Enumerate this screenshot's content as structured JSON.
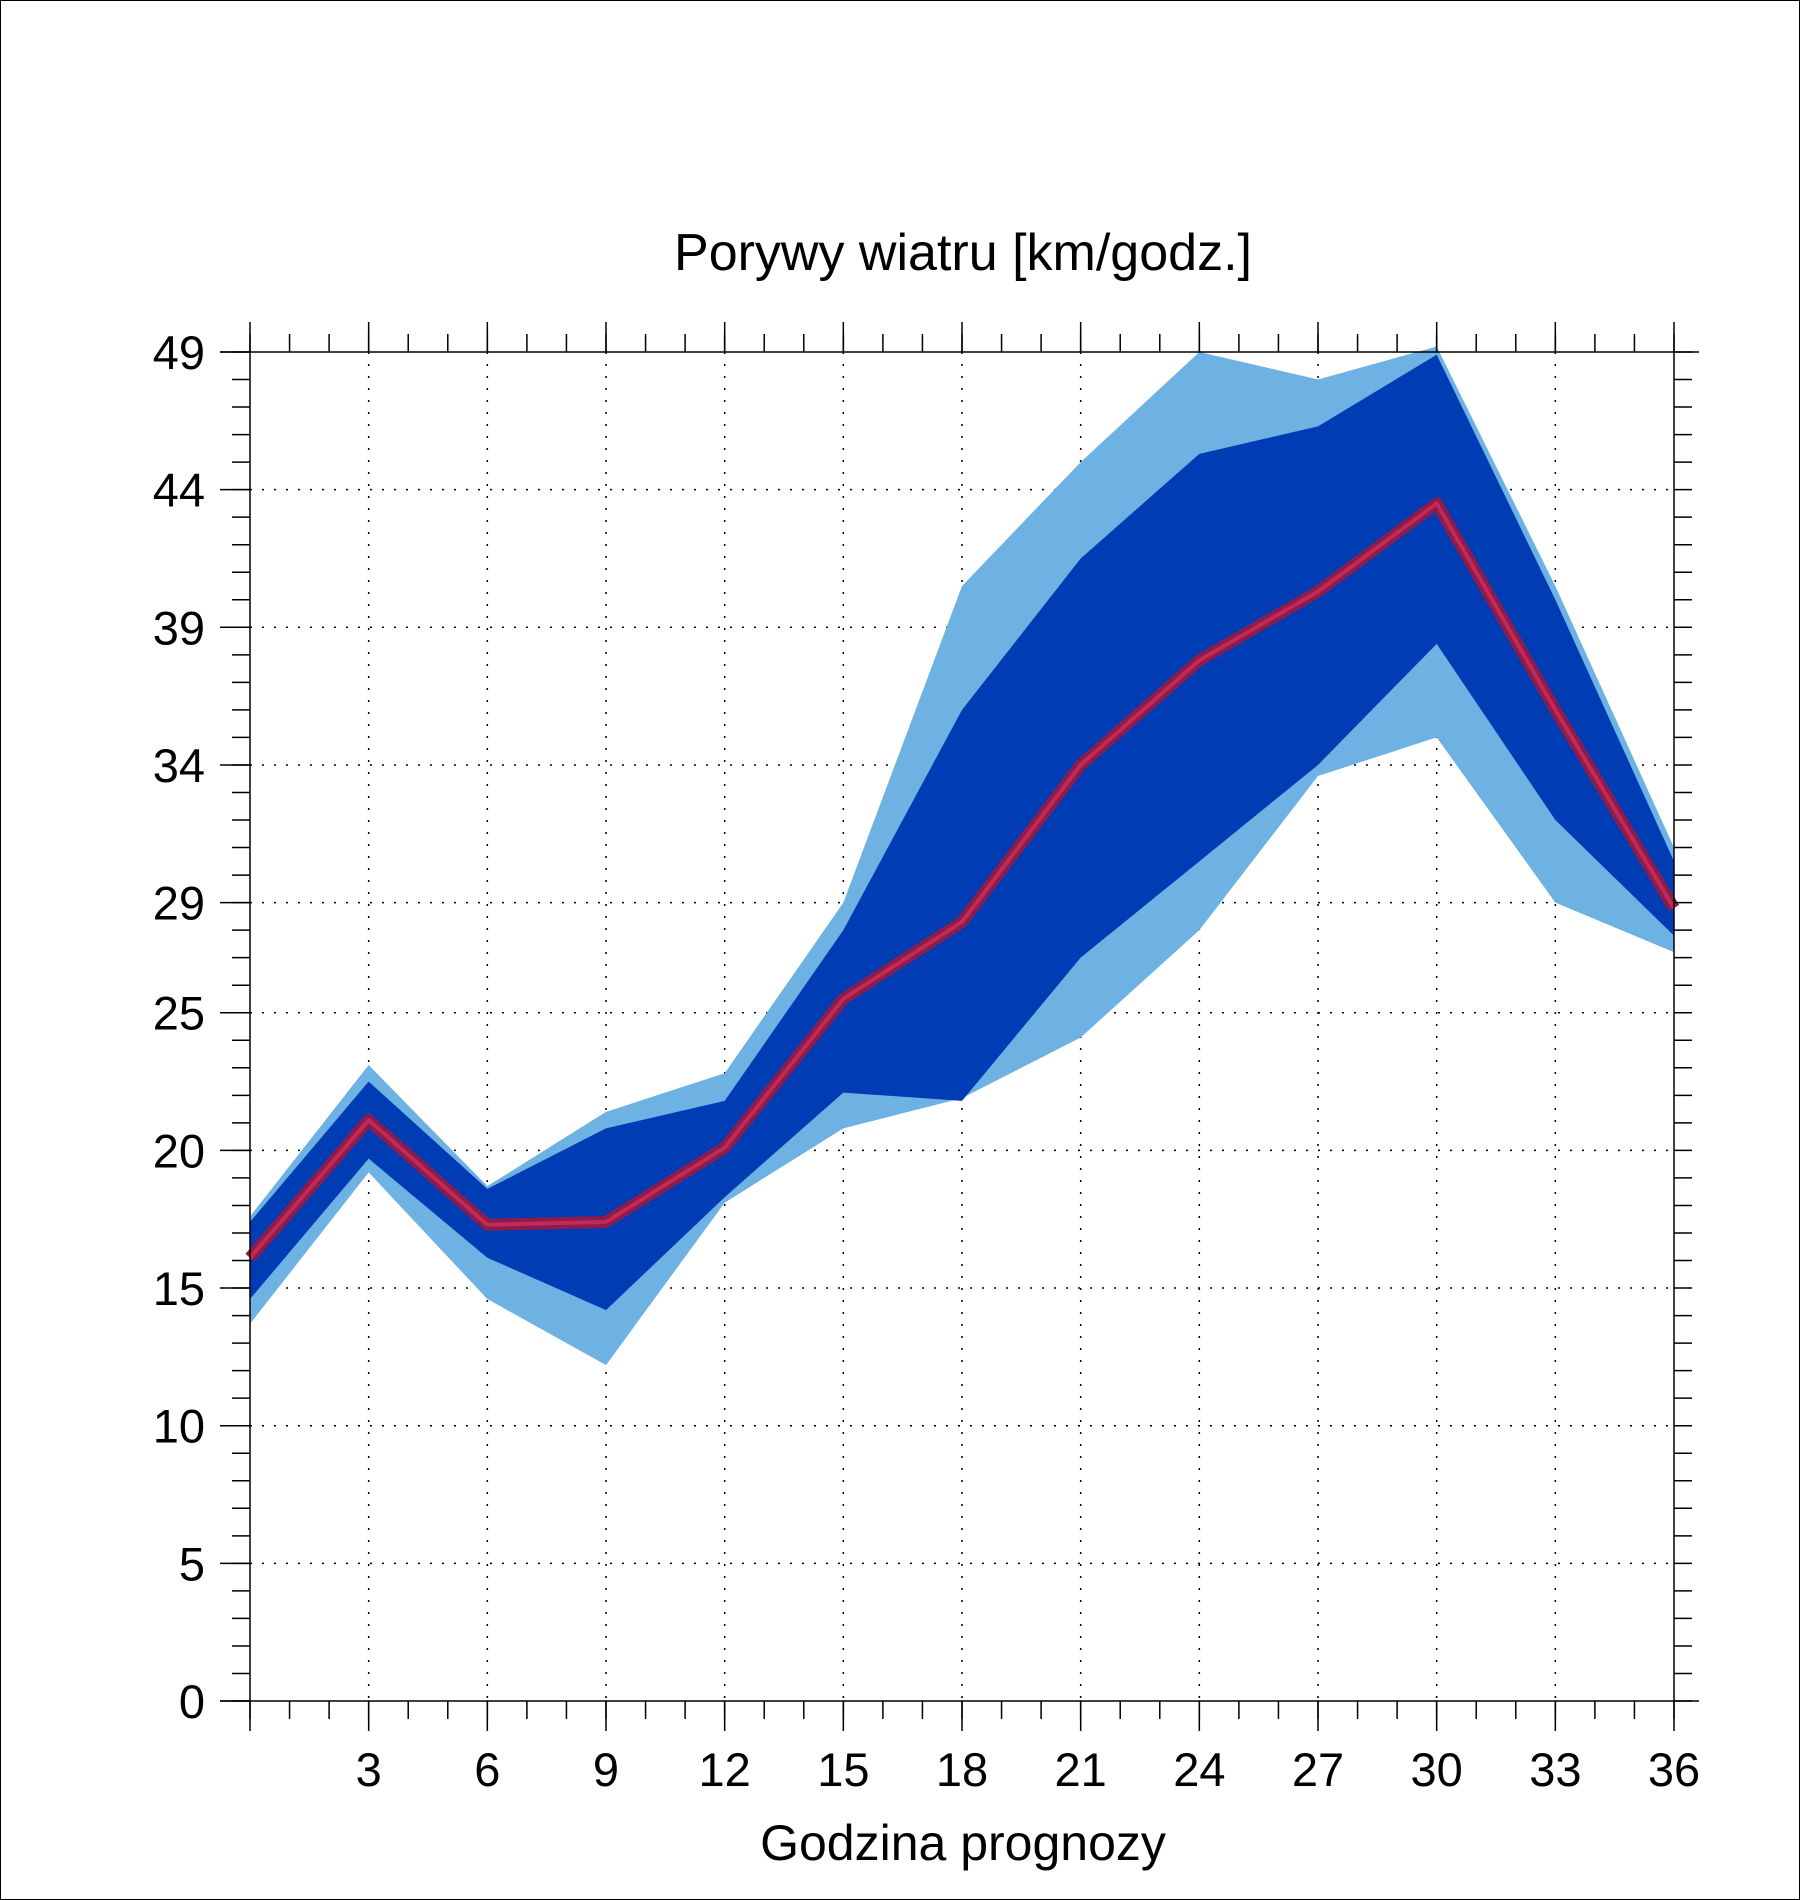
{
  "chart_data": {
    "type": "area",
    "title": "Porywy wiatru [km/godz.]",
    "xlabel": "Godzina prognozy",
    "ylabel": "",
    "x": [
      0,
      3,
      6,
      9,
      12,
      15,
      18,
      21,
      24,
      27,
      30,
      33,
      36
    ],
    "x_ticks": [
      3,
      6,
      9,
      12,
      15,
      18,
      21,
      24,
      27,
      30,
      33,
      36
    ],
    "y_ticks": [
      0,
      5,
      10,
      15,
      20,
      25,
      29,
      34,
      39,
      44,
      49
    ],
    "xlim": [
      0,
      36
    ],
    "ylim": [
      0,
      49
    ],
    "grid": true,
    "series": [
      {
        "role": "outer-band-upper",
        "values": [
          17.6,
          23.1,
          18.7,
          21.4,
          22.8,
          29.0,
          40.5,
          45.0,
          49.0,
          48.0,
          49.2,
          40.5,
          31.0
        ]
      },
      {
        "role": "outer-band-lower",
        "values": [
          13.7,
          19.2,
          14.6,
          12.2,
          18.1,
          20.8,
          21.9,
          24.1,
          28.0,
          33.6,
          35.0,
          29.0,
          27.2
        ]
      },
      {
        "role": "inner-band-upper",
        "values": [
          17.4,
          22.5,
          18.6,
          20.8,
          21.8,
          28.0,
          36.0,
          41.5,
          45.3,
          46.3,
          48.9,
          40.0,
          30.5
        ]
      },
      {
        "role": "inner-band-lower",
        "values": [
          14.6,
          19.7,
          16.1,
          14.2,
          18.3,
          22.1,
          21.8,
          27.0,
          30.5,
          34.0,
          38.4,
          32.0,
          27.8
        ]
      },
      {
        "role": "median",
        "values": [
          16.1,
          21.1,
          17.3,
          17.4,
          20.1,
          25.5,
          28.3,
          34.0,
          37.8,
          40.3,
          43.5,
          36.0,
          28.8
        ]
      }
    ],
    "colors": {
      "outer_band": "#6eb2e4",
      "inner_band": "#003cb4",
      "median_line": "#8c1c4c",
      "median_line_core": "#c02a54",
      "grid": "#000000"
    }
  }
}
